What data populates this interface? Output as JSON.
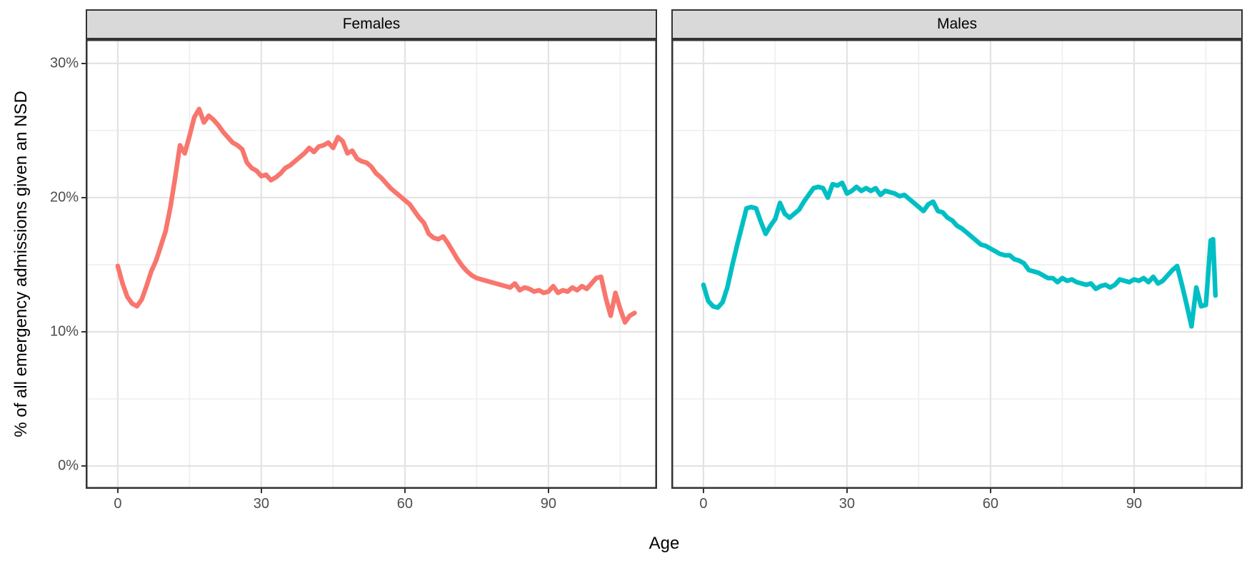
{
  "chart_data": {
    "type": "line",
    "title": "",
    "xlabel": "Age",
    "ylabel": "% of all emergency admissions given an NSD",
    "facet_labels": [
      "Females",
      "Males"
    ],
    "x_ticks": [
      0,
      30,
      60,
      90
    ],
    "x_minor_ticks": [
      15,
      45,
      75,
      105
    ],
    "y_ticks": [
      {
        "value": 0,
        "label": "0%"
      },
      {
        "value": 10,
        "label": "10%"
      },
      {
        "value": 20,
        "label": "20%"
      },
      {
        "value": 30,
        "label": "30%"
      }
    ],
    "y_minor_ticks": [
      5,
      15,
      25
    ],
    "x_domain": [
      -6.7,
      112.7
    ],
    "y_domain": [
      -1.7,
      31.8
    ],
    "grid": "major and minor, light gray on white, dark panel border (ggplot theme_bw style)",
    "legend_position": "none",
    "colors": {
      "females_line": "#F8766D",
      "males_line": "#00BFC4",
      "strip_background": "#D9D9D9",
      "panel_border": "#333333",
      "grid_major": "#E3E3E3",
      "grid_minor": "#EEEEEE",
      "tick_text": "#4D4D4D",
      "title_text": "#000000"
    },
    "panels": [
      {
        "label": "Females",
        "color": "#F8766D",
        "series": [
          [
            0,
            14.9
          ],
          [
            1,
            13.6
          ],
          [
            2,
            12.6
          ],
          [
            3,
            12.1
          ],
          [
            4,
            11.9
          ],
          [
            5,
            12.4
          ],
          [
            6,
            13.4
          ],
          [
            7,
            14.5
          ],
          [
            8,
            15.3
          ],
          [
            9,
            16.4
          ],
          [
            10,
            17.5
          ],
          [
            11,
            19.3
          ],
          [
            12,
            21.5
          ],
          [
            13,
            23.9
          ],
          [
            14,
            23.3
          ],
          [
            15,
            24.6
          ],
          [
            16,
            26.0
          ],
          [
            17,
            26.6
          ],
          [
            18,
            25.6
          ],
          [
            19,
            26.1
          ],
          [
            20,
            25.8
          ],
          [
            21,
            25.4
          ],
          [
            22,
            24.9
          ],
          [
            23,
            24.5
          ],
          [
            24,
            24.1
          ],
          [
            25,
            23.9
          ],
          [
            26,
            23.6
          ],
          [
            27,
            22.6
          ],
          [
            28,
            22.2
          ],
          [
            29,
            22.0
          ],
          [
            30,
            21.6
          ],
          [
            31,
            21.7
          ],
          [
            32,
            21.3
          ],
          [
            33,
            21.5
          ],
          [
            34,
            21.8
          ],
          [
            35,
            22.2
          ],
          [
            36,
            22.4
          ],
          [
            37,
            22.7
          ],
          [
            38,
            23.0
          ],
          [
            39,
            23.3
          ],
          [
            40,
            23.7
          ],
          [
            41,
            23.4
          ],
          [
            42,
            23.8
          ],
          [
            43,
            23.9
          ],
          [
            44,
            24.1
          ],
          [
            45,
            23.7
          ],
          [
            46,
            24.5
          ],
          [
            47,
            24.2
          ],
          [
            48,
            23.3
          ],
          [
            49,
            23.5
          ],
          [
            50,
            22.9
          ],
          [
            51,
            22.7
          ],
          [
            52,
            22.6
          ],
          [
            53,
            22.3
          ],
          [
            54,
            21.8
          ],
          [
            55,
            21.5
          ],
          [
            56,
            21.1
          ],
          [
            57,
            20.7
          ],
          [
            58,
            20.4
          ],
          [
            59,
            20.1
          ],
          [
            60,
            19.8
          ],
          [
            61,
            19.5
          ],
          [
            62,
            19.0
          ],
          [
            63,
            18.5
          ],
          [
            64,
            18.1
          ],
          [
            65,
            17.3
          ],
          [
            66,
            17.0
          ],
          [
            67,
            16.9
          ],
          [
            68,
            17.1
          ],
          [
            69,
            16.6
          ],
          [
            70,
            16.0
          ],
          [
            71,
            15.4
          ],
          [
            72,
            14.9
          ],
          [
            73,
            14.5
          ],
          [
            74,
            14.2
          ],
          [
            75,
            14.0
          ],
          [
            76,
            13.9
          ],
          [
            77,
            13.8
          ],
          [
            78,
            13.7
          ],
          [
            79,
            13.6
          ],
          [
            80,
            13.5
          ],
          [
            81,
            13.4
          ],
          [
            82,
            13.3
          ],
          [
            83,
            13.6
          ],
          [
            84,
            13.1
          ],
          [
            85,
            13.3
          ],
          [
            86,
            13.2
          ],
          [
            87,
            13.0
          ],
          [
            88,
            13.1
          ],
          [
            89,
            12.9
          ],
          [
            90,
            13.0
          ],
          [
            91,
            13.4
          ],
          [
            92,
            12.9
          ],
          [
            93,
            13.1
          ],
          [
            94,
            13.0
          ],
          [
            95,
            13.3
          ],
          [
            96,
            13.1
          ],
          [
            97,
            13.4
          ],
          [
            98,
            13.2
          ],
          [
            99,
            13.6
          ],
          [
            100,
            14.0
          ],
          [
            101,
            14.1
          ],
          [
            102,
            12.5
          ],
          [
            103,
            11.2
          ],
          [
            104,
            12.9
          ],
          [
            105,
            11.7
          ],
          [
            106,
            10.7
          ],
          [
            107,
            11.2
          ],
          [
            108,
            11.4
          ]
        ]
      },
      {
        "label": "Males",
        "color": "#00BFC4",
        "series": [
          [
            0,
            13.5
          ],
          [
            1,
            12.3
          ],
          [
            2,
            11.9
          ],
          [
            3,
            11.8
          ],
          [
            4,
            12.2
          ],
          [
            5,
            13.3
          ],
          [
            6,
            14.9
          ],
          [
            7,
            16.4
          ],
          [
            8,
            17.8
          ],
          [
            9,
            19.2
          ],
          [
            10,
            19.3
          ],
          [
            11,
            19.2
          ],
          [
            12,
            18.2
          ],
          [
            13,
            17.3
          ],
          [
            14,
            17.9
          ],
          [
            15,
            18.4
          ],
          [
            16,
            19.6
          ],
          [
            17,
            18.8
          ],
          [
            18,
            18.5
          ],
          [
            19,
            18.8
          ],
          [
            20,
            19.1
          ],
          [
            21,
            19.7
          ],
          [
            22,
            20.2
          ],
          [
            23,
            20.7
          ],
          [
            24,
            20.8
          ],
          [
            25,
            20.7
          ],
          [
            26,
            20.0
          ],
          [
            27,
            21.0
          ],
          [
            28,
            20.9
          ],
          [
            29,
            21.1
          ],
          [
            30,
            20.3
          ],
          [
            31,
            20.5
          ],
          [
            32,
            20.8
          ],
          [
            33,
            20.5
          ],
          [
            34,
            20.7
          ],
          [
            35,
            20.5
          ],
          [
            36,
            20.7
          ],
          [
            37,
            20.2
          ],
          [
            38,
            20.5
          ],
          [
            39,
            20.4
          ],
          [
            40,
            20.3
          ],
          [
            41,
            20.1
          ],
          [
            42,
            20.2
          ],
          [
            43,
            19.9
          ],
          [
            44,
            19.6
          ],
          [
            45,
            19.3
          ],
          [
            46,
            19.0
          ],
          [
            47,
            19.5
          ],
          [
            48,
            19.7
          ],
          [
            49,
            19.0
          ],
          [
            50,
            18.9
          ],
          [
            51,
            18.5
          ],
          [
            52,
            18.3
          ],
          [
            53,
            17.9
          ],
          [
            54,
            17.7
          ],
          [
            55,
            17.4
          ],
          [
            56,
            17.1
          ],
          [
            57,
            16.8
          ],
          [
            58,
            16.5
          ],
          [
            59,
            16.4
          ],
          [
            60,
            16.2
          ],
          [
            61,
            16.0
          ],
          [
            62,
            15.8
          ],
          [
            63,
            15.7
          ],
          [
            64,
            15.7
          ],
          [
            65,
            15.4
          ],
          [
            66,
            15.3
          ],
          [
            67,
            15.1
          ],
          [
            68,
            14.6
          ],
          [
            69,
            14.5
          ],
          [
            70,
            14.4
          ],
          [
            71,
            14.2
          ],
          [
            72,
            14.0
          ],
          [
            73,
            14.0
          ],
          [
            74,
            13.7
          ],
          [
            75,
            14.0
          ],
          [
            76,
            13.8
          ],
          [
            77,
            13.9
          ],
          [
            78,
            13.7
          ],
          [
            79,
            13.6
          ],
          [
            80,
            13.5
          ],
          [
            81,
            13.6
          ],
          [
            82,
            13.2
          ],
          [
            83,
            13.4
          ],
          [
            84,
            13.5
          ],
          [
            85,
            13.3
          ],
          [
            86,
            13.5
          ],
          [
            87,
            13.9
          ],
          [
            88,
            13.8
          ],
          [
            89,
            13.7
          ],
          [
            90,
            13.9
          ],
          [
            91,
            13.8
          ],
          [
            92,
            14.0
          ],
          [
            93,
            13.7
          ],
          [
            94,
            14.1
          ],
          [
            95,
            13.6
          ],
          [
            96,
            13.8
          ],
          [
            97,
            14.2
          ],
          [
            98,
            14.6
          ],
          [
            99,
            14.9
          ],
          [
            100,
            13.5
          ],
          [
            101,
            12.0
          ],
          [
            102,
            10.4
          ],
          [
            103,
            13.3
          ],
          [
            104,
            11.9
          ],
          [
            105,
            12.0
          ],
          [
            106,
            16.8
          ],
          [
            106.5,
            16.9
          ],
          [
            107,
            12.7
          ]
        ]
      }
    ]
  }
}
